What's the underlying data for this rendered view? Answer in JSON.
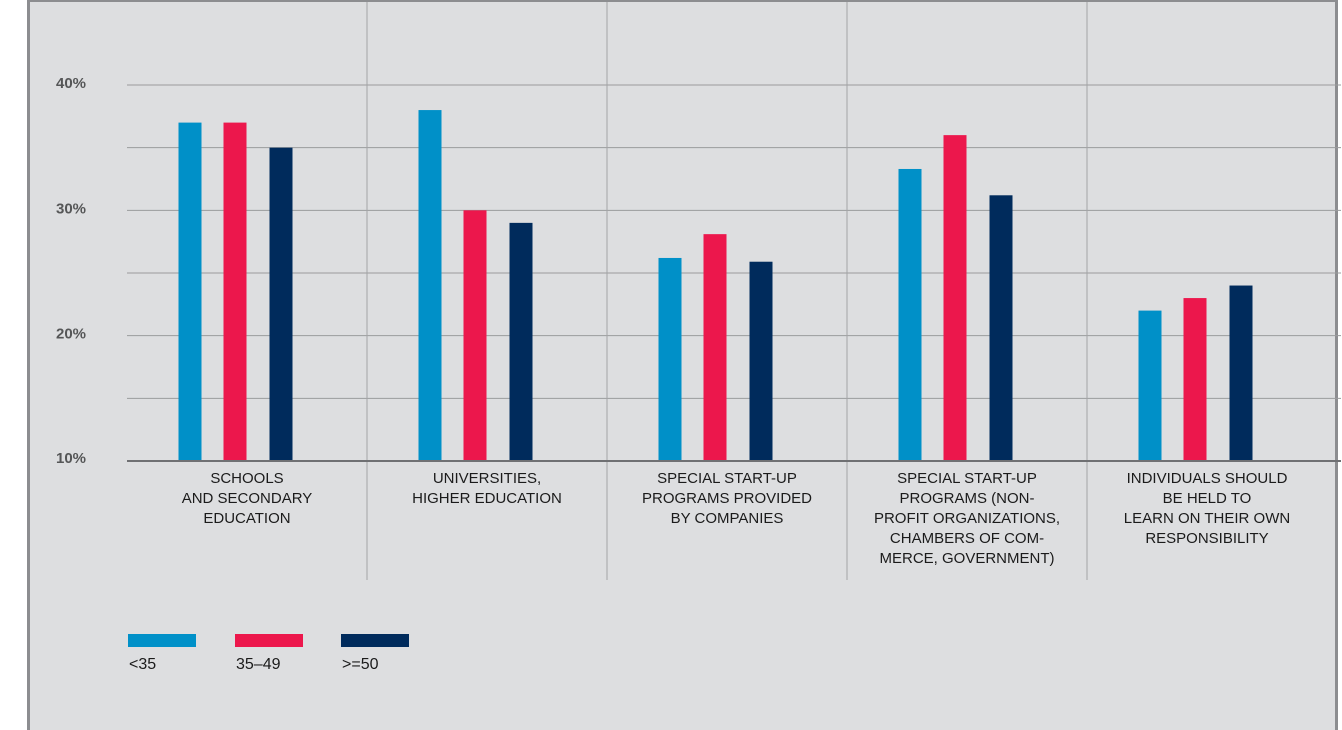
{
  "chart_data": {
    "type": "bar",
    "title": "",
    "xlabel": "",
    "ylabel": "",
    "ylim": [
      10,
      40
    ],
    "y_ticks": [
      {
        "value": 10,
        "label": "10%"
      },
      {
        "value": 20,
        "label": "20%"
      },
      {
        "value": 30,
        "label": "30%"
      },
      {
        "value": 40,
        "label": "40%"
      }
    ],
    "grid": true,
    "legend_position": "bottom-left",
    "categories": [
      [
        "SCHOOLS",
        "AND SECONDARY",
        "EDUCATION"
      ],
      [
        "UNIVERSITIES,",
        "HIGHER EDUCATION"
      ],
      [
        "SPECIAL START-UP",
        "PROGRAMS PROVIDED",
        "BY COMPANIES"
      ],
      [
        "SPECIAL START-UP",
        "PROGRAMS (NON-",
        "PROFIT ORGANIZATIONS,",
        "CHAMBERS OF COM-",
        "MERCE, GOVERNMENT)"
      ],
      [
        "INDIVIDUALS SHOULD",
        "BE HELD TO",
        "LEARN ON THEIR OWN",
        "RESPONSIBILITY"
      ]
    ],
    "series": [
      {
        "name": "<35",
        "color": "#0090c8",
        "values": [
          37,
          38,
          26.2,
          33.3,
          22
        ]
      },
      {
        "name": "35–49",
        "color": "#ec174c",
        "values": [
          37,
          30,
          28.1,
          36,
          23
        ]
      },
      {
        "name": ">=50",
        "color": "#002b5c",
        "values": [
          35,
          29,
          25.9,
          31.2,
          24
        ]
      }
    ]
  }
}
